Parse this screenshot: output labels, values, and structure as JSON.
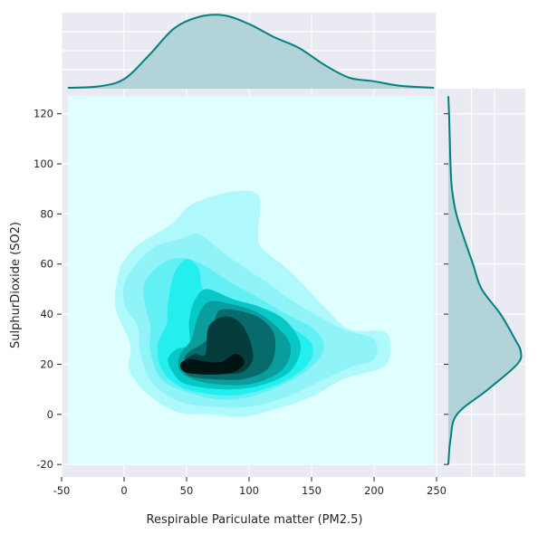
{
  "chart_data": {
    "type": "kde-jointplot",
    "xlabel": "Respirable Pariculate matter (PM2.5)",
    "ylabel": "SulphurDioxide (SO2)",
    "xlim": [
      -50,
      250
    ],
    "ylim": [
      -25,
      130
    ],
    "x_ticks": [
      -50,
      0,
      50,
      100,
      150,
      200,
      250
    ],
    "y_ticks": [
      -20,
      0,
      20,
      40,
      60,
      80,
      100,
      120
    ],
    "grid": true,
    "colors": {
      "fill": "#e0ffff",
      "levels": [
        "#aff8fb",
        "#8ff3f7",
        "#63f0f4",
        "#24eeee",
        "#07c8c6",
        "#0a9d9c",
        "#086b6b",
        "#053c3c",
        "#011414"
      ],
      "marginal_line": "#008080",
      "marginal_fill": "#b2d4d8",
      "panel_bg": "#eaeaf2",
      "grid": "#ffffff"
    },
    "x_marginal_density": {
      "x": [
        -45,
        -20,
        0,
        20,
        40,
        60,
        80,
        100,
        120,
        140,
        160,
        180,
        200,
        220,
        248
      ],
      "y": [
        0.0,
        0.02,
        0.12,
        0.45,
        0.82,
        0.98,
        1.0,
        0.88,
        0.7,
        0.55,
        0.32,
        0.14,
        0.09,
        0.03,
        0.0
      ]
    },
    "y_marginal_density": {
      "y": [
        -20,
        -10,
        0,
        10,
        20,
        25,
        30,
        40,
        50,
        60,
        70,
        80,
        90,
        100,
        110,
        120,
        127
      ],
      "x": [
        0.0,
        0.03,
        0.12,
        0.55,
        0.95,
        1.0,
        0.92,
        0.72,
        0.46,
        0.34,
        0.22,
        0.11,
        0.05,
        0.03,
        0.02,
        0.01,
        0.0
      ]
    },
    "kde_levels": [
      [
        [
          -7,
          43
        ],
        [
          -4,
          57
        ],
        [
          1,
          62
        ],
        [
          12,
          68
        ],
        [
          38,
          76
        ],
        [
          55,
          84
        ],
        [
          88,
          89
        ],
        [
          108,
          87
        ],
        [
          107,
          72
        ],
        [
          111,
          66
        ],
        [
          133,
          57
        ],
        [
          160,
          43
        ],
        [
          180,
          34
        ],
        [
          208,
          33
        ],
        [
          213,
          27
        ],
        [
          210,
          20
        ],
        [
          197,
          17
        ],
        [
          175,
          14
        ],
        [
          150,
          7
        ],
        [
          120,
          2
        ],
        [
          95,
          -1
        ],
        [
          72,
          0
        ],
        [
          42,
          1
        ],
        [
          17,
          9
        ],
        [
          4,
          18
        ],
        [
          5,
          28
        ]
      ],
      [
        [
          1,
          43
        ],
        [
          0,
          52
        ],
        [
          10,
          60
        ],
        [
          25,
          67
        ],
        [
          45,
          70
        ],
        [
          60,
          72
        ],
        [
          78,
          65
        ],
        [
          95,
          59
        ],
        [
          116,
          52
        ],
        [
          142,
          43
        ],
        [
          175,
          34
        ],
        [
          200,
          30
        ],
        [
          200,
          22
        ],
        [
          182,
          19
        ],
        [
          160,
          14
        ],
        [
          130,
          7
        ],
        [
          100,
          3
        ],
        [
          73,
          3
        ],
        [
          45,
          5
        ],
        [
          22,
          13
        ],
        [
          13,
          25
        ],
        [
          11,
          35
        ]
      ],
      [
        [
          17,
          43
        ],
        [
          16,
          52
        ],
        [
          25,
          58
        ],
        [
          38,
          62
        ],
        [
          52,
          62
        ],
        [
          66,
          59
        ],
        [
          84,
          53
        ],
        [
          106,
          47
        ],
        [
          130,
          40
        ],
        [
          152,
          34
        ],
        [
          160,
          27
        ],
        [
          152,
          20
        ],
        [
          132,
          13
        ],
        [
          101,
          7
        ],
        [
          75,
          6
        ],
        [
          50,
          9
        ],
        [
          30,
          14
        ],
        [
          21,
          25
        ],
        [
          21,
          35
        ]
      ],
      [
        [
          35,
          44
        ],
        [
          40,
          56
        ],
        [
          50,
          62
        ],
        [
          60,
          58
        ],
        [
          63,
          50
        ],
        [
          78,
          46
        ],
        [
          100,
          42
        ],
        [
          125,
          37
        ],
        [
          147,
          30
        ],
        [
          151,
          24
        ],
        [
          143,
          18
        ],
        [
          123,
          12
        ],
        [
          95,
          8
        ],
        [
          70,
          8
        ],
        [
          45,
          11
        ],
        [
          30,
          18
        ],
        [
          27,
          28
        ],
        [
          34,
          36
        ]
      ],
      [
        [
          52,
          28
        ],
        [
          52,
          37
        ],
        [
          56,
          45
        ],
        [
          66,
          50
        ],
        [
          87,
          46
        ],
        [
          108,
          43
        ],
        [
          128,
          38
        ],
        [
          140,
          30
        ],
        [
          140,
          23
        ],
        [
          130,
          16
        ],
        [
          105,
          11
        ],
        [
          78,
          10
        ],
        [
          50,
          12
        ],
        [
          40,
          16
        ],
        [
          35,
          22
        ],
        [
          42,
          26
        ]
      ],
      [
        [
          54,
          30
        ],
        [
          59,
          39
        ],
        [
          68,
          45
        ],
        [
          86,
          44
        ],
        [
          105,
          41
        ],
        [
          120,
          36
        ],
        [
          132,
          29
        ],
        [
          132,
          22
        ],
        [
          122,
          16
        ],
        [
          100,
          12
        ],
        [
          75,
          12
        ],
        [
          55,
          14
        ],
        [
          44,
          18
        ],
        [
          45,
          24
        ]
      ],
      [
        [
          70,
          32
        ],
        [
          74,
          40
        ],
        [
          80,
          42
        ],
        [
          95,
          41
        ],
        [
          110,
          38
        ],
        [
          120,
          32
        ],
        [
          120,
          23
        ],
        [
          112,
          17
        ],
        [
          94,
          14
        ],
        [
          72,
          14
        ],
        [
          54,
          15
        ],
        [
          47,
          18
        ],
        [
          50,
          24
        ],
        [
          62,
          28
        ]
      ],
      [
        [
          65,
          24
        ],
        [
          67,
          34
        ],
        [
          74,
          38
        ],
        [
          84,
          39
        ],
        [
          94,
          36
        ],
        [
          101,
          29
        ],
        [
          103,
          22
        ],
        [
          95,
          17
        ],
        [
          80,
          16
        ],
        [
          62,
          16
        ],
        [
          51,
          17
        ],
        [
          48,
          21
        ],
        [
          56,
          24
        ]
      ],
      [
        [
          48,
          17
        ],
        [
          45,
          20
        ],
        [
          52,
          22
        ],
        [
          67,
          21
        ],
        [
          78,
          21
        ],
        [
          88,
          24
        ],
        [
          94,
          23
        ],
        [
          96,
          20
        ],
        [
          88,
          17
        ],
        [
          76,
          16
        ],
        [
          60,
          16
        ]
      ]
    ]
  }
}
